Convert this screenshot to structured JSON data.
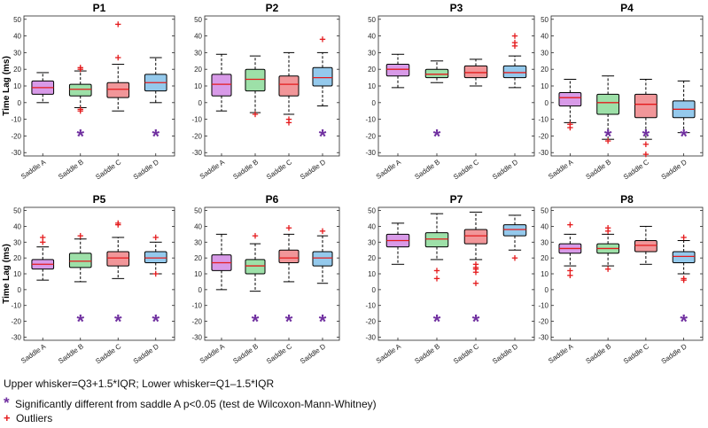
{
  "chart_data": [
    {
      "type": "boxplot",
      "title": "P1",
      "ylabel": "Time Lag (ms)",
      "ylim": [
        -32,
        52
      ],
      "categories": [
        "Saddle A",
        "Saddle B",
        "Saddle C",
        "Saddle D"
      ],
      "boxes": [
        {
          "lw": 0,
          "q1": 5,
          "med": 9,
          "q3": 13,
          "uw": 18,
          "outliers": [],
          "sig": false
        },
        {
          "lw": -3,
          "q1": 4,
          "med": 8,
          "q3": 11,
          "uw": 19,
          "outliers": [
            21,
            20,
            -5,
            -4
          ],
          "sig": true
        },
        {
          "lw": -5,
          "q1": 3,
          "med": 8,
          "q3": 12,
          "uw": 23,
          "outliers": [
            47,
            27
          ],
          "sig": false
        },
        {
          "lw": 0,
          "q1": 7,
          "med": 12,
          "q3": 17,
          "uw": 27,
          "outliers": [],
          "sig": true
        }
      ]
    },
    {
      "type": "boxplot",
      "title": "P2",
      "ylabel": "",
      "ylim": [
        -32,
        52
      ],
      "categories": [
        "Saddle A",
        "Saddle B",
        "Saddle C",
        "Saddle D"
      ],
      "boxes": [
        {
          "lw": -5,
          "q1": 4,
          "med": 11,
          "q3": 17,
          "uw": 29,
          "outliers": [],
          "sig": false
        },
        {
          "lw": -6,
          "q1": 7,
          "med": 14,
          "q3": 20,
          "uw": 28,
          "outliers": [
            -7
          ],
          "sig": false
        },
        {
          "lw": -7,
          "q1": 4,
          "med": 11,
          "q3": 16,
          "uw": 30,
          "outliers": [
            -10,
            -12
          ],
          "sig": false
        },
        {
          "lw": -2,
          "q1": 10,
          "med": 15,
          "q3": 21,
          "uw": 30,
          "outliers": [
            38
          ],
          "sig": true
        }
      ]
    },
    {
      "type": "boxplot",
      "title": "P3",
      "ylabel": "",
      "ylim": [
        -32,
        52
      ],
      "categories": [
        "Saddle A",
        "Saddle B",
        "Saddle C",
        "Saddle D"
      ],
      "boxes": [
        {
          "lw": 9,
          "q1": 16,
          "med": 20,
          "q3": 23,
          "uw": 29,
          "outliers": [],
          "sig": false
        },
        {
          "lw": 12,
          "q1": 15,
          "med": 17,
          "q3": 20,
          "uw": 25,
          "outliers": [],
          "sig": true
        },
        {
          "lw": 10,
          "q1": 15,
          "med": 18,
          "q3": 22,
          "uw": 26,
          "outliers": [],
          "sig": false
        },
        {
          "lw": 9,
          "q1": 15,
          "med": 18,
          "q3": 22,
          "uw": 28,
          "outliers": [
            40,
            36,
            34
          ],
          "sig": false
        }
      ]
    },
    {
      "type": "boxplot",
      "title": "P4",
      "ylabel": "",
      "ylim": [
        -32,
        52
      ],
      "categories": [
        "Saddle A",
        "Saddle B",
        "Saddle C",
        "Saddle D"
      ],
      "boxes": [
        {
          "lw": -12,
          "q1": -2,
          "med": 3,
          "q3": 6,
          "uw": 14,
          "outliers": [
            -13,
            -15
          ],
          "sig": false
        },
        {
          "lw": -22,
          "q1": -7,
          "med": 0,
          "q3": 5,
          "uw": 16,
          "outliers": [
            -23
          ],
          "sig": true
        },
        {
          "lw": -22,
          "q1": -9,
          "med": -1,
          "q3": 5,
          "uw": 14,
          "outliers": [
            -25,
            -31
          ],
          "sig": true
        },
        {
          "lw": -18,
          "q1": -9,
          "med": -4,
          "q3": 1,
          "uw": 13,
          "outliers": [],
          "sig": true
        }
      ]
    },
    {
      "type": "boxplot",
      "title": "P5",
      "ylabel": "Time Lag (ms)",
      "ylim": [
        -32,
        52
      ],
      "categories": [
        "Saddle A",
        "Saddle B",
        "Saddle C",
        "Saddle D"
      ],
      "boxes": [
        {
          "lw": 6,
          "q1": 13,
          "med": 16,
          "q3": 19,
          "uw": 27,
          "outliers": [
            33,
            30
          ],
          "sig": false
        },
        {
          "lw": 5,
          "q1": 14,
          "med": 18,
          "q3": 23,
          "uw": 32,
          "outliers": [
            34
          ],
          "sig": true
        },
        {
          "lw": 7,
          "q1": 15,
          "med": 20,
          "q3": 24,
          "uw": 33,
          "outliers": [
            42,
            41
          ],
          "sig": true
        },
        {
          "lw": 10,
          "q1": 17,
          "med": 20,
          "q3": 24,
          "uw": 30,
          "outliers": [
            33,
            10
          ],
          "sig": true
        }
      ]
    },
    {
      "type": "boxplot",
      "title": "P6",
      "ylabel": "",
      "ylim": [
        -32,
        52
      ],
      "categories": [
        "Saddle A",
        "Saddle B",
        "Saddle C",
        "Saddle D"
      ],
      "boxes": [
        {
          "lw": 0,
          "q1": 12,
          "med": 17,
          "q3": 22,
          "uw": 35,
          "outliers": [],
          "sig": false
        },
        {
          "lw": -1,
          "q1": 10,
          "med": 15,
          "q3": 19,
          "uw": 29,
          "outliers": [
            34
          ],
          "sig": true
        },
        {
          "lw": 5,
          "q1": 17,
          "med": 20,
          "q3": 25,
          "uw": 35,
          "outliers": [
            39
          ],
          "sig": true
        },
        {
          "lw": 4,
          "q1": 15,
          "med": 20,
          "q3": 24,
          "uw": 34,
          "outliers": [
            37
          ],
          "sig": true
        }
      ]
    },
    {
      "type": "boxplot",
      "title": "P7",
      "ylabel": "",
      "ylim": [
        -32,
        52
      ],
      "categories": [
        "Saddle A",
        "Saddle B",
        "Saddle C",
        "Saddle D"
      ],
      "boxes": [
        {
          "lw": 16,
          "q1": 27,
          "med": 31,
          "q3": 35,
          "uw": 42,
          "outliers": [],
          "sig": false
        },
        {
          "lw": 19,
          "q1": 27,
          "med": 32,
          "q3": 36,
          "uw": 48,
          "outliers": [
            12,
            7
          ],
          "sig": true
        },
        {
          "lw": 19,
          "q1": 29,
          "med": 34,
          "q3": 38,
          "uw": 49,
          "outliers": [
            16,
            14,
            13,
            11,
            4
          ],
          "sig": true
        },
        {
          "lw": 25,
          "q1": 34,
          "med": 38,
          "q3": 41,
          "uw": 47,
          "outliers": [
            20
          ],
          "sig": false
        }
      ]
    },
    {
      "type": "boxplot",
      "title": "P8",
      "ylabel": "",
      "ylim": [
        -32,
        52
      ],
      "categories": [
        "Saddle A",
        "Saddle B",
        "Saddle C",
        "Saddle D"
      ],
      "boxes": [
        {
          "lw": 15,
          "q1": 23,
          "med": 26,
          "q3": 29,
          "uw": 35,
          "outliers": [
            41,
            12,
            9
          ],
          "sig": false
        },
        {
          "lw": 15,
          "q1": 23,
          "med": 26,
          "q3": 29,
          "uw": 35,
          "outliers": [
            39,
            37,
            13
          ],
          "sig": false
        },
        {
          "lw": 16,
          "q1": 24,
          "med": 28,
          "q3": 31,
          "uw": 40,
          "outliers": [],
          "sig": false
        },
        {
          "lw": 10,
          "q1": 17,
          "med": 21,
          "q3": 24,
          "uw": 31,
          "outliers": [
            33,
            7,
            6
          ],
          "sig": true
        }
      ]
    }
  ],
  "box_colors": [
    "#d89ae8",
    "#9de0a8",
    "#f19699",
    "#94c9ec"
  ],
  "median_color": "#e41a1c",
  "outlier_color": "#e41a1c",
  "significance_color": "#7030a0",
  "yticks": [
    -30,
    -20,
    -10,
    0,
    10,
    20,
    30,
    40,
    50
  ],
  "legend": {
    "whisker_note": "Upper whisker=Q3+1.5*IQR; Lower whisker=Q1–1.5*IQR",
    "significance_symbol": "*",
    "significance_note": "Significantly different from saddle A p<0.05 (test de Wilcoxon-Mann-Whitney)",
    "outlier_symbol": "+",
    "outlier_note": "Outliers"
  }
}
